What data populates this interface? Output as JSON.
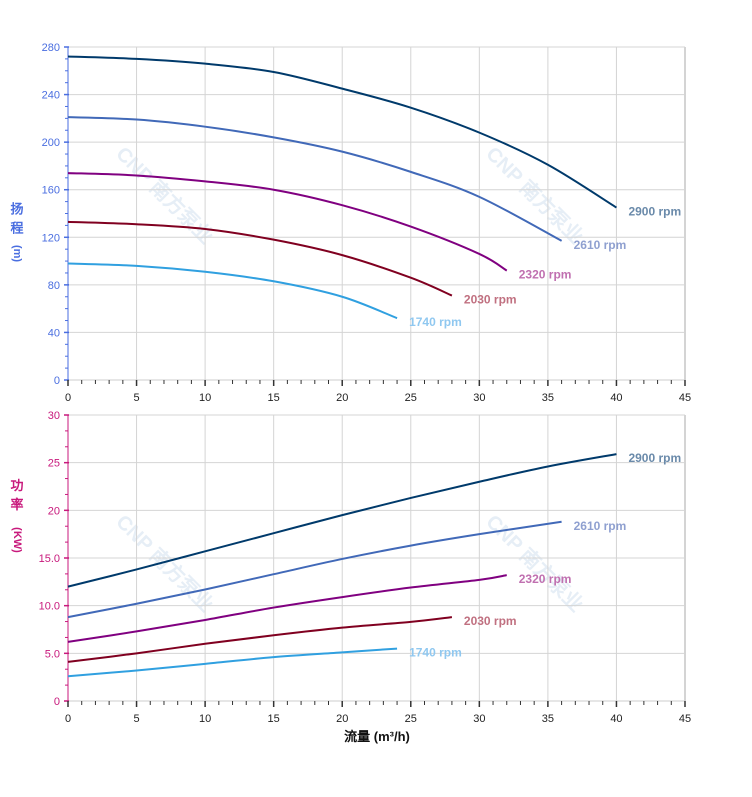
{
  "watermark": "CNP 南方泵业",
  "chart_data": [
    {
      "type": "line",
      "ylabel": [
        "扬",
        "程",
        "(m)"
      ],
      "axis_color": "#4a6ee0",
      "xlim": [
        0,
        45
      ],
      "ylim": [
        0,
        280
      ],
      "xticks": [
        "0",
        "5",
        "10",
        "15",
        "20",
        "25",
        "30",
        "35",
        "40",
        "45"
      ],
      "yticks": [
        "0",
        "40",
        "80",
        "120",
        "160",
        "200",
        "240",
        "280"
      ],
      "grid": true,
      "series": [
        {
          "name": "2900 rpm",
          "color": "#003a6b",
          "label_color": "#6a8aaa",
          "x": [
            0,
            5,
            10,
            15,
            20,
            25,
            30,
            35,
            40
          ],
          "y": [
            272,
            270,
            266,
            259,
            245,
            229,
            208,
            181,
            145
          ]
        },
        {
          "name": "2610 rpm",
          "color": "#4169b8",
          "label_color": "#8fa0d0",
          "x": [
            0,
            5,
            10,
            15,
            20,
            25,
            30,
            36
          ],
          "y": [
            221,
            219,
            213,
            204,
            192,
            175,
            154,
            117
          ]
        },
        {
          "name": "2320 rpm",
          "color": "#800080",
          "label_color": "#c070b0",
          "x": [
            0,
            5,
            10,
            15,
            20,
            25,
            30,
            32
          ],
          "y": [
            174,
            172,
            167,
            160,
            147,
            129,
            106,
            92
          ]
        },
        {
          "name": "2030 rpm",
          "color": "#800020",
          "label_color": "#c07080",
          "x": [
            0,
            5,
            10,
            15,
            20,
            25,
            28
          ],
          "y": [
            133,
            131,
            127,
            118,
            105,
            86,
            71
          ]
        },
        {
          "name": "1740 rpm",
          "color": "#30a0e0",
          "label_color": "#90c8f0",
          "x": [
            0,
            5,
            10,
            15,
            20,
            24
          ],
          "y": [
            98,
            96,
            91,
            83,
            70,
            52
          ]
        }
      ]
    },
    {
      "type": "line",
      "ylabel": [
        "功",
        "率",
        "(KW)"
      ],
      "xlabel": "流量 (m³/h)",
      "axis_color": "#c8197c",
      "xlim": [
        0,
        45
      ],
      "ylim": [
        0,
        30
      ],
      "xticks": [
        "0",
        "5",
        "10",
        "15",
        "20",
        "25",
        "30",
        "35",
        "40",
        "45"
      ],
      "yticks": [
        "0",
        "5.0",
        "10.0",
        "15.0",
        "20",
        "25",
        "30"
      ],
      "grid": true,
      "series": [
        {
          "name": "2900 rpm",
          "color": "#003a6b",
          "label_color": "#6a8aaa",
          "x": [
            0,
            5,
            10,
            15,
            20,
            25,
            30,
            35,
            40
          ],
          "y": [
            12.0,
            13.8,
            15.7,
            17.6,
            19.5,
            21.3,
            23.0,
            24.6,
            25.9
          ]
        },
        {
          "name": "2610 rpm",
          "color": "#4169b8",
          "label_color": "#8fa0d0",
          "x": [
            0,
            5,
            10,
            15,
            20,
            25,
            30,
            36
          ],
          "y": [
            8.8,
            10.2,
            11.7,
            13.3,
            14.9,
            16.3,
            17.5,
            18.8
          ]
        },
        {
          "name": "2320 rpm",
          "color": "#800080",
          "label_color": "#c070b0",
          "x": [
            0,
            5,
            10,
            15,
            20,
            25,
            30,
            32
          ],
          "y": [
            6.2,
            7.3,
            8.5,
            9.8,
            10.9,
            11.9,
            12.7,
            13.2
          ]
        },
        {
          "name": "2030 rpm",
          "color": "#800020",
          "label_color": "#c07080",
          "x": [
            0,
            5,
            10,
            15,
            20,
            25,
            28
          ],
          "y": [
            4.1,
            5.0,
            6.0,
            6.9,
            7.7,
            8.3,
            8.8
          ]
        },
        {
          "name": "1740 rpm",
          "color": "#30a0e0",
          "label_color": "#90c8f0",
          "x": [
            0,
            5,
            10,
            15,
            20,
            24
          ],
          "y": [
            2.6,
            3.2,
            3.9,
            4.6,
            5.1,
            5.5
          ]
        }
      ]
    }
  ]
}
